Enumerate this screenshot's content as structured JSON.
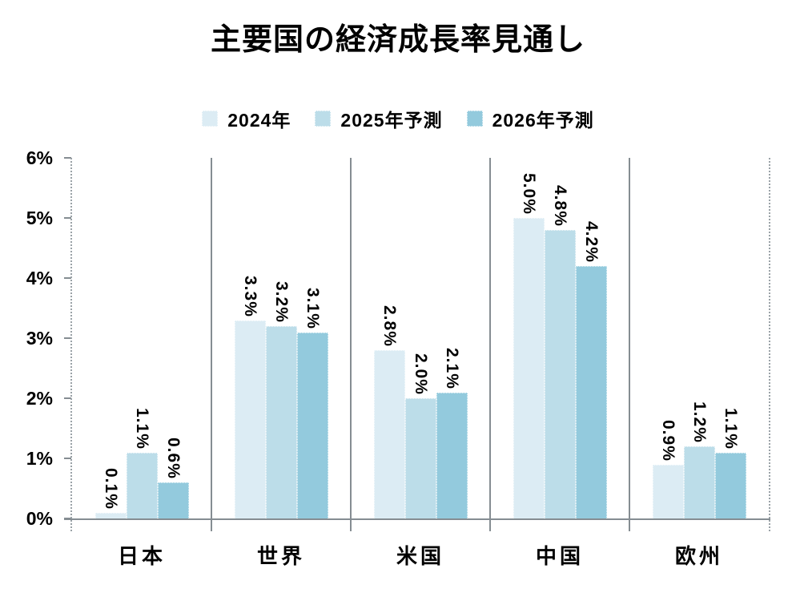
{
  "title": "主要国の経済成長率見通し",
  "legend": {
    "items": [
      {
        "label": "2024年",
        "color": "#dcecf4"
      },
      {
        "label": "2025年予測",
        "color": "#bcdde9"
      },
      {
        "label": "2026年予測",
        "color": "#93cadd"
      }
    ]
  },
  "chart_data": {
    "type": "bar",
    "title": "主要国の経済成長率見通し",
    "categories": [
      "日本",
      "世界",
      "米国",
      "中国",
      "欧州"
    ],
    "series": [
      {
        "name": "2024年",
        "color": "#dcecf4",
        "values": [
          0.1,
          3.3,
          2.8,
          5.0,
          0.9
        ],
        "labels": [
          "0.1%",
          "3.3%",
          "2.8%",
          "5.0%",
          "0.9%"
        ]
      },
      {
        "name": "2025年予測",
        "color": "#bcdde9",
        "values": [
          1.1,
          3.2,
          2.0,
          4.8,
          1.2
        ],
        "labels": [
          "1.1%",
          "3.2%",
          "2.0%",
          "4.8%",
          "1.2%"
        ]
      },
      {
        "name": "2026年予測",
        "color": "#93cadd",
        "values": [
          0.6,
          3.1,
          2.1,
          4.2,
          1.1
        ],
        "labels": [
          "0.6%",
          "3.1%",
          "2.1%",
          "4.2%",
          "1.1%"
        ]
      }
    ],
    "ylim": [
      0,
      6
    ],
    "yticks": [
      "0%",
      "1%",
      "2%",
      "3%",
      "4%",
      "5%",
      "6%"
    ],
    "xlabel": "",
    "ylabel": "",
    "legend_position": "top-center",
    "grid": "vertical category separators, no horizontal gridlines",
    "value_label_rotation": "90deg clockwise above each bar"
  },
  "colors": {
    "axis_solid": "#858d92",
    "axis_dotted": "#9aa2a7",
    "text": "#000000",
    "background": "#ffffff"
  }
}
